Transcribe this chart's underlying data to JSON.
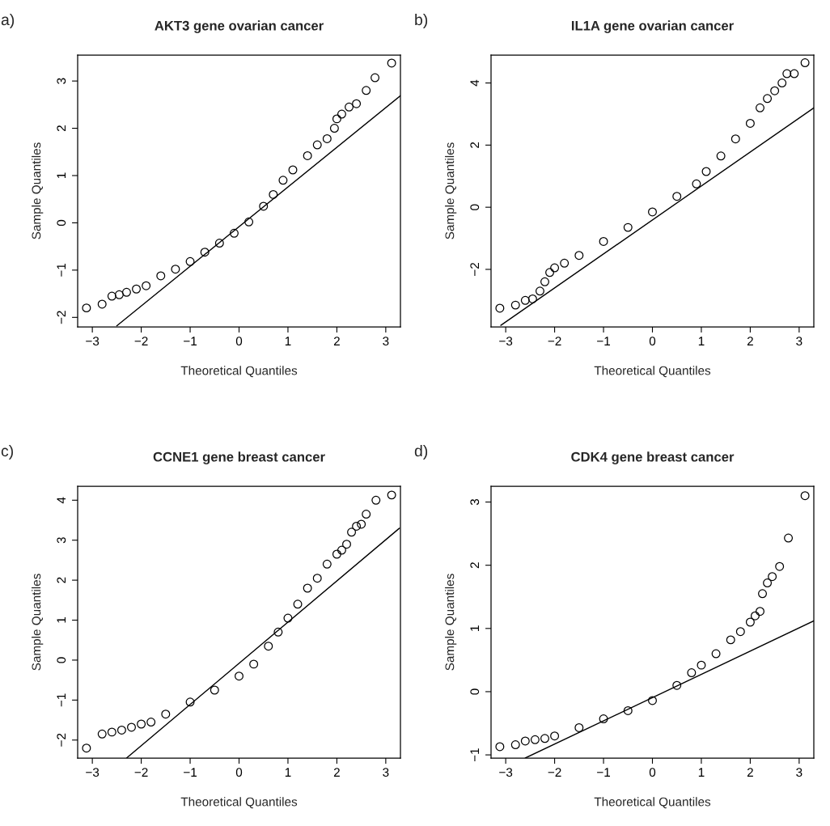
{
  "chart_data": [
    {
      "type": "scatter",
      "title": "AKT3 gene ovarian cancer",
      "xlabel": "Theoretical Quantiles",
      "ylabel": "Sample Quantiles",
      "annotations": [
        "a)"
      ],
      "xlim": [
        -3.3,
        3.3
      ],
      "ylim": [
        -2.2,
        3.55
      ],
      "xticks": [
        -3,
        -2,
        -1,
        0,
        1,
        2,
        3
      ],
      "yticks": [
        -2,
        -1,
        0,
        1,
        2,
        3
      ],
      "series": [
        {
          "marker": "circle",
          "color": "#000000",
          "x": [
            -3.12,
            -2.8,
            -2.6,
            -2.45,
            -2.3,
            -2.1,
            -1.9,
            -1.6,
            -1.3,
            -1.0,
            -0.7,
            -0.4,
            -0.1,
            0.2,
            0.5,
            0.7,
            0.9,
            1.1,
            1.4,
            1.6,
            1.8,
            1.95,
            2.0,
            2.1,
            2.25,
            2.4,
            2.6,
            2.78,
            3.12
          ],
          "values": [
            -1.8,
            -1.72,
            -1.55,
            -1.52,
            -1.47,
            -1.4,
            -1.33,
            -1.12,
            -0.98,
            -0.82,
            -0.62,
            -0.43,
            -0.22,
            0.02,
            0.35,
            0.6,
            0.9,
            1.12,
            1.42,
            1.65,
            1.78,
            2.0,
            2.2,
            2.3,
            2.45,
            2.52,
            2.8,
            3.07,
            3.38
          ]
        },
        {
          "type": "line",
          "color": "#000000",
          "x": [
            -2.5,
            3.3
          ],
          "values": [
            -2.18,
            2.69
          ]
        }
      ]
    },
    {
      "type": "scatter",
      "title": "IL1A gene ovarian cancer",
      "xlabel": "Theoretical Quantiles",
      "ylabel": "Sample Quantiles",
      "annotations": [
        "b)"
      ],
      "xlim": [
        -3.3,
        3.3
      ],
      "ylim": [
        -3.85,
        4.9
      ],
      "xticks": [
        -3,
        -2,
        -1,
        0,
        1,
        2,
        3
      ],
      "yticks": [
        -2,
        0,
        2,
        4
      ],
      "series": [
        {
          "marker": "circle",
          "color": "#000000",
          "x": [
            -3.12,
            -2.8,
            -2.6,
            -2.45,
            -2.3,
            -2.2,
            -2.1,
            -2.0,
            -1.8,
            -1.5,
            -1.0,
            -0.5,
            0.0,
            0.5,
            0.9,
            1.1,
            1.4,
            1.7,
            2.0,
            2.2,
            2.35,
            2.5,
            2.65,
            2.75,
            2.9,
            3.12
          ],
          "values": [
            -3.25,
            -3.15,
            -3.0,
            -2.95,
            -2.7,
            -2.4,
            -2.1,
            -1.95,
            -1.8,
            -1.55,
            -1.1,
            -0.65,
            -0.15,
            0.35,
            0.75,
            1.15,
            1.65,
            2.2,
            2.7,
            3.2,
            3.5,
            3.75,
            4.0,
            4.3,
            4.3,
            4.65
          ]
        },
        {
          "type": "line",
          "color": "#000000",
          "x": [
            -3.1,
            3.3
          ],
          "values": [
            -3.8,
            3.2
          ]
        }
      ]
    },
    {
      "type": "scatter",
      "title": "CCNE1 gene breast cancer",
      "xlabel": "Theoretical Quantiles",
      "ylabel": "Sample Quantiles",
      "annotations": [
        "c)"
      ],
      "xlim": [
        -3.3,
        3.3
      ],
      "ylim": [
        -2.45,
        4.35
      ],
      "xticks": [
        -3,
        -2,
        -1,
        0,
        1,
        2,
        3
      ],
      "yticks": [
        -2,
        -1,
        0,
        1,
        2,
        3,
        4
      ],
      "series": [
        {
          "marker": "circle",
          "color": "#000000",
          "x": [
            -3.12,
            -2.8,
            -2.6,
            -2.4,
            -2.2,
            -2.0,
            -1.8,
            -1.5,
            -1.0,
            -0.5,
            0.0,
            0.3,
            0.6,
            0.8,
            1.0,
            1.2,
            1.4,
            1.6,
            1.8,
            2.0,
            2.1,
            2.2,
            2.3,
            2.4,
            2.5,
            2.6,
            2.8,
            3.12
          ],
          "values": [
            -2.2,
            -1.85,
            -1.8,
            -1.75,
            -1.68,
            -1.6,
            -1.55,
            -1.35,
            -1.05,
            -0.75,
            -0.4,
            -0.1,
            0.35,
            0.7,
            1.05,
            1.4,
            1.8,
            2.05,
            2.4,
            2.65,
            2.75,
            2.9,
            3.2,
            3.35,
            3.4,
            3.65,
            4.0,
            4.13
          ]
        },
        {
          "type": "line",
          "color": "#000000",
          "x": [
            -2.3,
            3.28
          ],
          "values": [
            -2.45,
            3.3
          ]
        }
      ]
    },
    {
      "type": "scatter",
      "title": "CDK4 gene breast cancer",
      "xlabel": "Theoretical Quantiles",
      "ylabel": "Sample Quantiles",
      "annotations": [
        "d)"
      ],
      "xlim": [
        -3.3,
        3.3
      ],
      "ylim": [
        -1.05,
        3.25
      ],
      "xticks": [
        -3,
        -2,
        -1,
        0,
        1,
        2,
        3
      ],
      "yticks": [
        -1,
        0,
        1,
        2,
        3
      ],
      "series": [
        {
          "marker": "circle",
          "color": "#000000",
          "x": [
            -3.12,
            -2.8,
            -2.6,
            -2.4,
            -2.2,
            -2.0,
            -1.5,
            -1.0,
            -0.5,
            0.0,
            0.5,
            0.8,
            1.0,
            1.3,
            1.6,
            1.8,
            2.0,
            2.1,
            2.2,
            2.25,
            2.35,
            2.45,
            2.6,
            2.78,
            3.12
          ],
          "values": [
            -0.87,
            -0.84,
            -0.78,
            -0.76,
            -0.74,
            -0.7,
            -0.57,
            -0.43,
            -0.3,
            -0.14,
            0.1,
            0.3,
            0.42,
            0.6,
            0.82,
            0.95,
            1.1,
            1.2,
            1.27,
            1.55,
            1.72,
            1.82,
            1.98,
            2.43,
            3.1
          ]
        },
        {
          "type": "line",
          "color": "#000000",
          "x": [
            -2.6,
            3.3
          ],
          "values": [
            -1.05,
            1.12
          ]
        }
      ]
    }
  ]
}
